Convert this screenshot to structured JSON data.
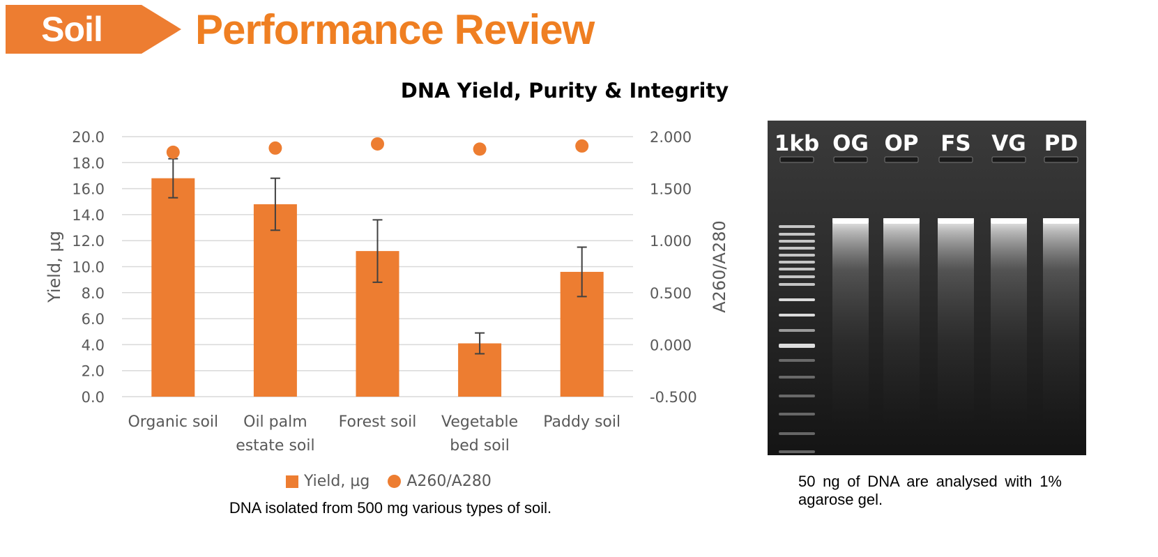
{
  "header": {
    "section": "Soil",
    "title": "Performance Review"
  },
  "chart_data": {
    "type": "bar",
    "title": "DNA Yield, Purity & Integrity",
    "categories": [
      [
        "Organic soil"
      ],
      [
        "Oil palm",
        "estate soil"
      ],
      [
        "Forest soil"
      ],
      [
        "Vegetable",
        "bed soil"
      ],
      [
        "Paddy soil"
      ]
    ],
    "series": [
      {
        "name": "Yield, µg",
        "kind": "bar",
        "axis": "left",
        "values": [
          16.8,
          14.8,
          11.2,
          4.1,
          9.6
        ],
        "error": [
          1.5,
          2.0,
          2.4,
          0.8,
          1.9
        ]
      },
      {
        "name": "A260/A280",
        "kind": "dot",
        "axis": "right",
        "values": [
          1.85,
          1.89,
          1.93,
          1.88,
          1.91
        ]
      }
    ],
    "ylabel": "Yield, µg",
    "y2label": "A260/A280",
    "ylim": [
      0,
      20
    ],
    "y2lim": [
      -0.5,
      2.0
    ],
    "yticks": [
      "0.0",
      "2.0",
      "4.0",
      "6.0",
      "8.0",
      "10.0",
      "12.0",
      "14.0",
      "16.0",
      "18.0",
      "20.0"
    ],
    "y2ticks": [
      "-0.500",
      "0.000",
      "0.500",
      "1.000",
      "1.500",
      "2.000"
    ],
    "grid": true,
    "legend_position": "bottom",
    "colors": {
      "bar": "#ed7d31",
      "dot": "#ed7d31",
      "error": "#404040",
      "grid": "#d9d9d9"
    }
  },
  "chart_caption": "DNA isolated from 500 mg various types of soil.",
  "gel": {
    "lane_labels": [
      "1kb",
      "OG",
      "OP",
      "FS",
      "VG",
      "PD"
    ],
    "caption": "50 ng of DNA are analysed with 1% agarose gel."
  },
  "colors": {
    "accent": "#ef7f22",
    "banner": "#ed7d31"
  }
}
